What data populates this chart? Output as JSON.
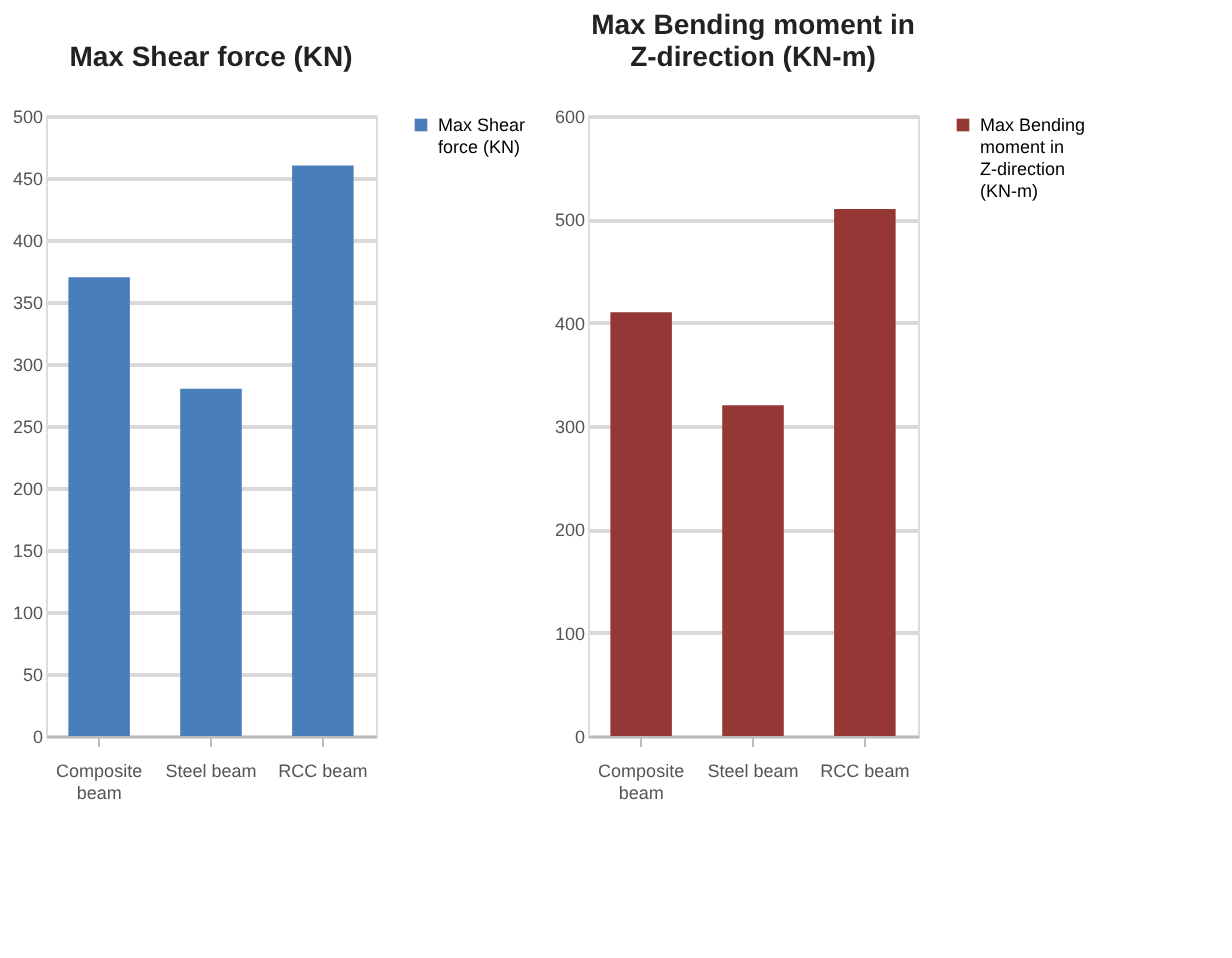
{
  "chart_data": [
    {
      "type": "bar",
      "title": "Max Shear force (KN)",
      "categories": [
        "Composite beam",
        "Steel beam",
        "RCC beam"
      ],
      "series": [
        {
          "name": "Max Shear force (KN)",
          "color": "#4a7ebb",
          "values": [
            370,
            280,
            460
          ]
        }
      ],
      "ylim": [
        0,
        500
      ],
      "yticks": [
        0,
        50,
        100,
        150,
        200,
        250,
        300,
        350,
        400,
        450,
        500
      ],
      "grid": "y",
      "legend": "right"
    },
    {
      "type": "bar",
      "title": "Max Bending moment in Z-direction (KN-m)",
      "categories": [
        "Composite beam",
        "Steel beam",
        "RCC beam"
      ],
      "series": [
        {
          "name": "Max Bending moment in Z-direction (KN-m)",
          "color": "#953735",
          "values": [
            410,
            320,
            510
          ]
        }
      ],
      "ylim": [
        0,
        600
      ],
      "yticks": [
        0,
        100,
        200,
        300,
        400,
        500,
        600
      ],
      "grid": "y",
      "legend": "right"
    }
  ]
}
